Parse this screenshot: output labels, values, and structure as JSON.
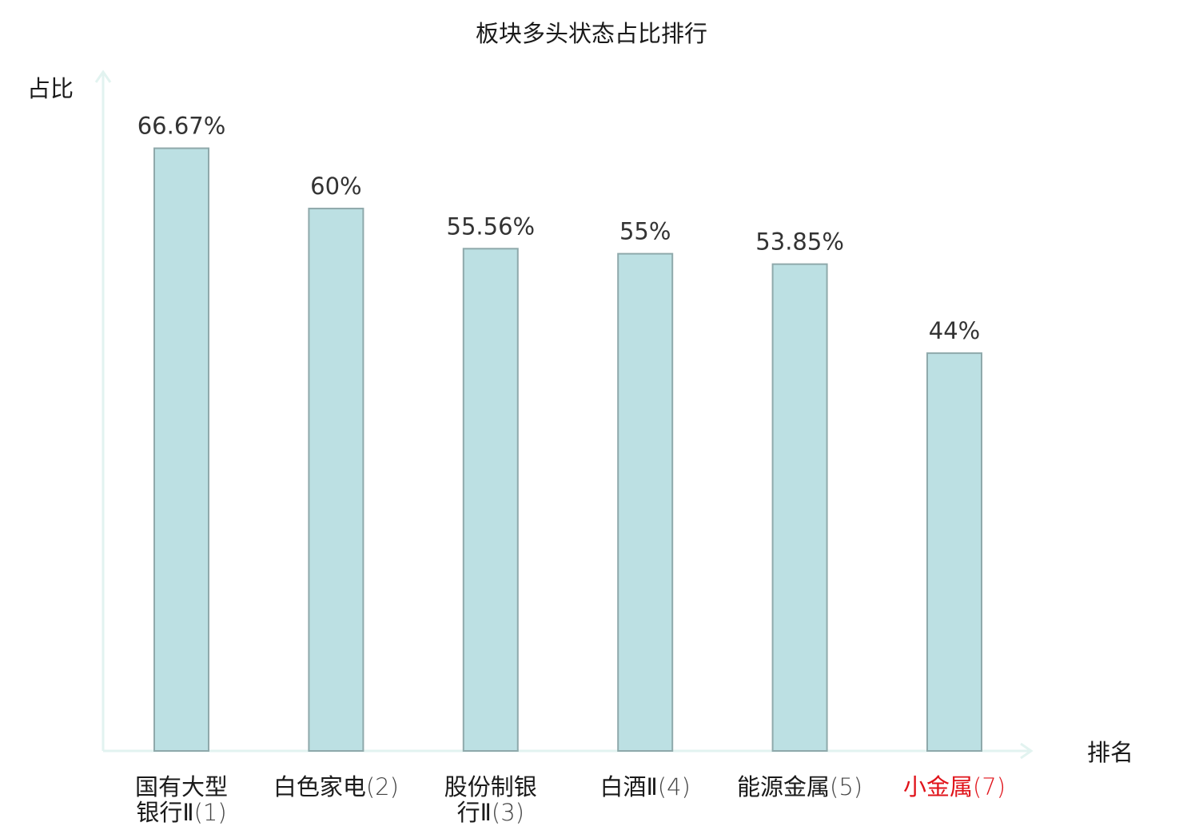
{
  "chart_data": {
    "type": "bar",
    "title": "板块多头状态占比排行",
    "ylabel": "占比",
    "xlabel": "排名",
    "ylim": [
      0,
      76
    ],
    "grid": false,
    "categories": [
      {
        "name_lines": [
          "国有大型",
          "银行Ⅱ"
        ],
        "rank_suffix": "(1)",
        "highlight": false
      },
      {
        "name_lines": [
          "白色家电"
        ],
        "rank_suffix": "(2)",
        "highlight": false
      },
      {
        "name_lines": [
          "股份制银",
          "行Ⅱ"
        ],
        "rank_suffix": "(3)",
        "highlight": false
      },
      {
        "name_lines": [
          "白酒Ⅱ"
        ],
        "rank_suffix": "(4)",
        "highlight": false
      },
      {
        "name_lines": [
          "能源金属"
        ],
        "rank_suffix": "(5)",
        "highlight": false
      },
      {
        "name_lines": [
          "小金属"
        ],
        "rank_suffix": "(7)",
        "highlight": true
      }
    ],
    "values": [
      66.67,
      60,
      55.56,
      55,
      53.85,
      44
    ],
    "value_labels": [
      "66.67%",
      "60%",
      "55.56%",
      "55%",
      "53.85%",
      "44%"
    ],
    "colors": {
      "bar_fill": "#bce0e3",
      "bar_stroke": "#8fa9ab",
      "axis": "#e2f3f0",
      "text": "#1a1a1a",
      "value_text": "#333333",
      "rank_text": "#444444",
      "highlight": "#e0131a"
    }
  }
}
